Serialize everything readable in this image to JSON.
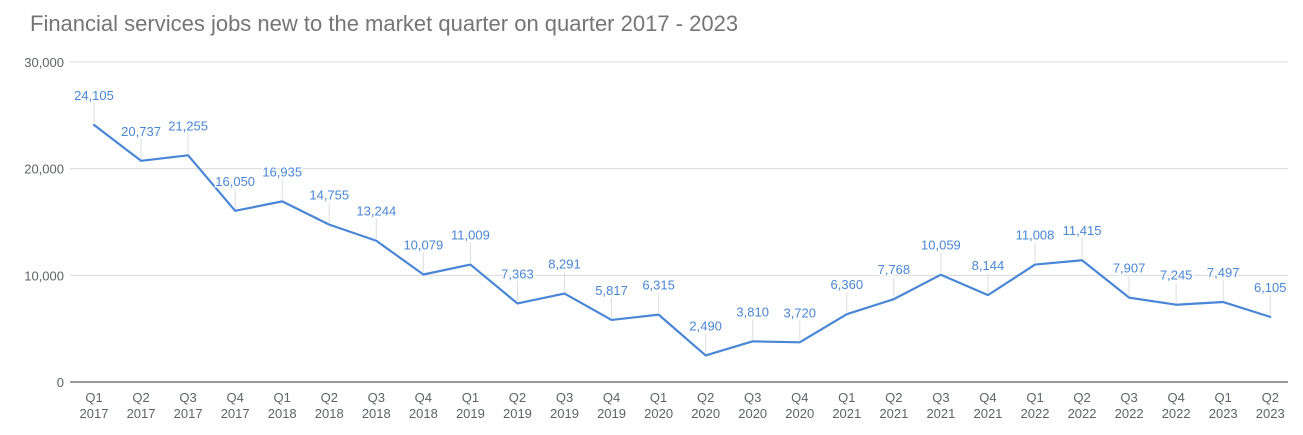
{
  "chart_data": {
    "type": "line",
    "title": "Financial services jobs new to the market quarter on quarter 2017 - 2023",
    "xlabel": "",
    "ylabel": "",
    "ylim": [
      0,
      30000
    ],
    "yticks": [
      "0",
      "10,000",
      "20,000",
      "30,000"
    ],
    "grid": true,
    "legend": "none",
    "line_color": "#4a86d6",
    "categories": [
      [
        "Q1",
        "2017"
      ],
      [
        "Q2",
        "2017"
      ],
      [
        "Q3",
        "2017"
      ],
      [
        "Q4",
        "2017"
      ],
      [
        "Q1",
        "2018"
      ],
      [
        "Q2",
        "2018"
      ],
      [
        "Q3",
        "2018"
      ],
      [
        "Q4",
        "2018"
      ],
      [
        "Q1",
        "2019"
      ],
      [
        "Q2",
        "2019"
      ],
      [
        "Q3",
        "2019"
      ],
      [
        "Q4",
        "2019"
      ],
      [
        "Q1",
        "2020"
      ],
      [
        "Q2",
        "2020"
      ],
      [
        "Q3",
        "2020"
      ],
      [
        "Q4",
        "2020"
      ],
      [
        "Q1",
        "2021"
      ],
      [
        "Q2",
        "2021"
      ],
      [
        "Q3",
        "2021"
      ],
      [
        "Q4",
        "2021"
      ],
      [
        "Q1",
        "2022"
      ],
      [
        "Q2",
        "2022"
      ],
      [
        "Q3",
        "2022"
      ],
      [
        "Q4",
        "2022"
      ],
      [
        "Q1",
        "2023"
      ],
      [
        "Q2",
        "2023"
      ]
    ],
    "values": [
      24105,
      20737,
      21255,
      16050,
      16935,
      14755,
      13244,
      10079,
      11009,
      7363,
      8291,
      5817,
      6315,
      2490,
      3810,
      3720,
      6360,
      7768,
      10059,
      8144,
      11008,
      11415,
      7907,
      7245,
      7497,
      6105
    ],
    "value_labels": [
      "24,105",
      "20,737",
      "21,255",
      "16,050",
      "16,935",
      "14,755",
      "13,244",
      "10,079",
      "11,009",
      "7,363",
      "8,291",
      "5,817",
      "6,315",
      "2,490",
      "3,810",
      "3,720",
      "6,360",
      "7,768",
      "10,059",
      "8,144",
      "11,008",
      "11,415",
      "7,907",
      "7,245",
      "7,497",
      "6,105"
    ]
  }
}
